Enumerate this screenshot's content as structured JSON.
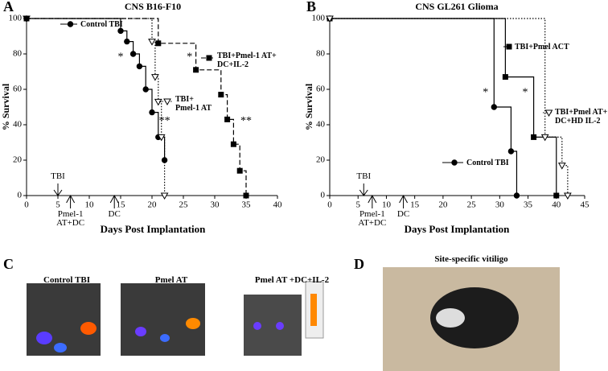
{
  "chart_data": [
    {
      "type": "survival",
      "panel": "A",
      "title": "CNS B16-F10",
      "xlabel": "Days Post Implantation",
      "ylabel": "% Survival",
      "xlim": [
        0,
        40
      ],
      "xticks": [
        0,
        5,
        10,
        15,
        20,
        25,
        30,
        35,
        40
      ],
      "ylim": [
        0,
        100
      ],
      "yticks": [
        0,
        20,
        40,
        60,
        80,
        100
      ],
      "series": [
        {
          "name": "Control TBI",
          "color": "#000000",
          "marker": "circle",
          "line_style": "solid",
          "x": [
            0,
            15,
            16,
            17,
            18,
            19,
            20,
            21,
            22
          ],
          "values": [
            100,
            93,
            87,
            80,
            73,
            60,
            47,
            33,
            20
          ]
        },
        {
          "name": "TBI+\nPmel-1 AT",
          "color": "#000000",
          "marker": "triangle",
          "line_style": "dotted",
          "x": [
            0,
            20,
            20.5,
            21,
            21.5,
            22
          ],
          "values": [
            100,
            87,
            67,
            53,
            33,
            0
          ]
        },
        {
          "name": "TBI+Pmel-1 AT+\nDC+IL-2",
          "color": "#000000",
          "marker": "square",
          "line_style": "dashed",
          "x": [
            0,
            21,
            27,
            31,
            32,
            33,
            34,
            35
          ],
          "values": [
            100,
            86,
            71,
            57,
            43,
            29,
            14,
            0
          ]
        }
      ],
      "annotations": [
        {
          "text": "TBI",
          "x": 5
        },
        {
          "text": "Pmel-1\nAT+DC",
          "x": 7
        },
        {
          "text": "DC",
          "x": 14
        }
      ],
      "significance": [
        {
          "text": "*",
          "x": 15,
          "y": 78
        },
        {
          "text": "*",
          "x": 26,
          "y": 78
        },
        {
          "text": "**",
          "x": 22,
          "y": 42
        },
        {
          "text": "**",
          "x": 35,
          "y": 42
        }
      ]
    },
    {
      "type": "survival",
      "panel": "B",
      "title": "CNS GL261 Glioma",
      "xlabel": "Days Post Implantation",
      "ylabel": "% Survival",
      "xlim": [
        0,
        45
      ],
      "xticks": [
        0,
        5,
        10,
        15,
        20,
        25,
        30,
        35,
        40,
        45
      ],
      "ylim": [
        0,
        100
      ],
      "yticks": [
        0,
        20,
        40,
        60,
        80,
        100
      ],
      "series": [
        {
          "name": "TBI+Pmel ACT",
          "color": "#000000",
          "marker": "square",
          "line_style": "solid",
          "x": [
            0,
            31,
            36,
            40
          ],
          "values": [
            100,
            67,
            33,
            0
          ]
        },
        {
          "name": "Control TBI",
          "color": "#000000",
          "marker": "circle",
          "line_style": "solid",
          "x": [
            0,
            29,
            32,
            33
          ],
          "values": [
            100,
            50,
            25,
            0
          ]
        },
        {
          "name": "TBI+Pmel AT+\nDC+HD IL-2",
          "color": "#000000",
          "marker": "triangle",
          "line_style": "dotted",
          "x": [
            0,
            38,
            41,
            42
          ],
          "values": [
            100,
            33,
            17,
            0
          ]
        }
      ],
      "annotations": [
        {
          "text": "TBI",
          "x": 6
        },
        {
          "text": "Pmel-1\nAT+DC",
          "x": 7.5
        },
        {
          "text": "DC",
          "x": 13
        }
      ],
      "significance": [
        {
          "text": "*",
          "x": 27.5,
          "y": 58
        },
        {
          "text": "*",
          "x": 34.5,
          "y": 58
        }
      ]
    }
  ],
  "photos": {
    "C": {
      "letter": "C",
      "labels": [
        "Control TBI",
        "Pmel AT",
        "Pmel AT +DC+IL-2"
      ]
    },
    "D": {
      "letter": "D",
      "label": "Site-specific vitiligo"
    }
  }
}
